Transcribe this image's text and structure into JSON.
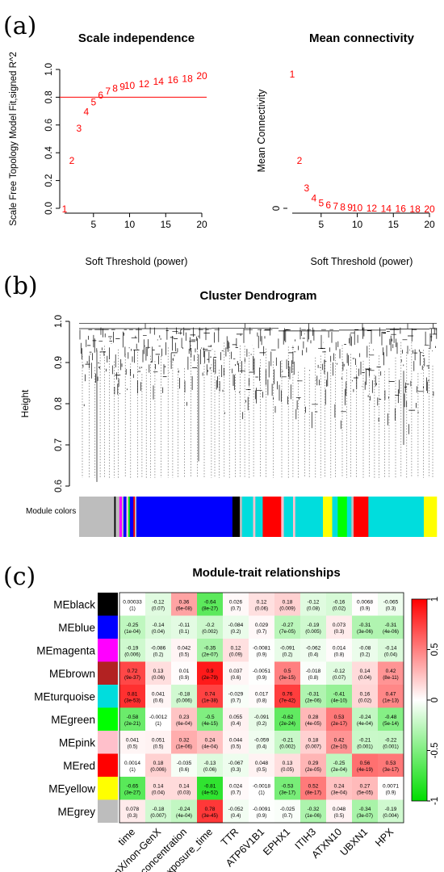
{
  "panels": {
    "a": "(a)",
    "b": "(b)",
    "c": "(c)"
  },
  "colors": {
    "threshold_line": "#ff0000",
    "point_text": "#ff0000",
    "dendrogram": "#000000",
    "heatmap_high": "#ff0000",
    "heatmap_mid": "#ffffff",
    "heatmap_low": "#00dd00"
  },
  "chart_data": [
    {
      "type": "scatter",
      "title": "Scale independence",
      "xlabel": "Soft Threshold (power)",
      "ylabel": "Scale Free Topology Model Fit,signed R^2",
      "xlim": [
        1,
        20
      ],
      "ylim": [
        0,
        1
      ],
      "xticks": [
        5,
        10,
        15,
        20
      ],
      "yticks": [
        0.0,
        0.2,
        0.4,
        0.6,
        0.8,
        1.0
      ],
      "cutoff": 0.8,
      "points": [
        {
          "x": 1,
          "y": 0.0,
          "label": "1"
        },
        {
          "x": 2,
          "y": 0.35,
          "label": "2"
        },
        {
          "x": 3,
          "y": 0.58,
          "label": "3"
        },
        {
          "x": 4,
          "y": 0.7,
          "label": "4"
        },
        {
          "x": 5,
          "y": 0.77,
          "label": "5"
        },
        {
          "x": 6,
          "y": 0.82,
          "label": "6"
        },
        {
          "x": 7,
          "y": 0.85,
          "label": "7"
        },
        {
          "x": 8,
          "y": 0.87,
          "label": "8"
        },
        {
          "x": 9,
          "y": 0.88,
          "label": "9"
        },
        {
          "x": 10,
          "y": 0.89,
          "label": "10"
        },
        {
          "x": 12,
          "y": 0.9,
          "label": "12"
        },
        {
          "x": 14,
          "y": 0.92,
          "label": "14"
        },
        {
          "x": 16,
          "y": 0.93,
          "label": "16"
        },
        {
          "x": 18,
          "y": 0.94,
          "label": "18"
        },
        {
          "x": 20,
          "y": 0.96,
          "label": "20"
        }
      ]
    },
    {
      "type": "scatter",
      "title": "Mean connectivity",
      "xlabel": "Soft Threshold (power)",
      "ylabel": "Mean Connectivity",
      "xlim": [
        1,
        20
      ],
      "ylim": [
        0,
        18
      ],
      "xticks": [
        5,
        10,
        15,
        20
      ],
      "yticks": [
        0
      ],
      "points": [
        {
          "x": 1,
          "y": 17.5,
          "label": "1"
        },
        {
          "x": 2,
          "y": 6.3,
          "label": "2"
        },
        {
          "x": 3,
          "y": 2.7,
          "label": "3"
        },
        {
          "x": 4,
          "y": 1.4,
          "label": "4"
        },
        {
          "x": 5,
          "y": 0.8,
          "label": "5"
        },
        {
          "x": 6,
          "y": 0.5,
          "label": "6"
        },
        {
          "x": 7,
          "y": 0.35,
          "label": "7"
        },
        {
          "x": 8,
          "y": 0.25,
          "label": "8"
        },
        {
          "x": 9,
          "y": 0.2,
          "label": "9"
        },
        {
          "x": 10,
          "y": 0.15,
          "label": "10"
        },
        {
          "x": 12,
          "y": 0.1,
          "label": "12"
        },
        {
          "x": 14,
          "y": 0.05,
          "label": "14"
        },
        {
          "x": 16,
          "y": 0.03,
          "label": "16"
        },
        {
          "x": 18,
          "y": 0.02,
          "label": "18"
        },
        {
          "x": 20,
          "y": 0.01,
          "label": "20"
        }
      ]
    },
    {
      "type": "dendrogram",
      "title": "Cluster Dendrogram",
      "ylabel": "Height",
      "ylim": [
        0.6,
        1.0
      ],
      "yticks": [
        0.6,
        0.7,
        0.8,
        0.9,
        1.0
      ],
      "color_bar_label": "Module colors",
      "color_bar": [
        {
          "color": "#bdbdbd",
          "w": 9.5
        },
        {
          "color": "#000000",
          "w": 0.4
        },
        {
          "color": "#bdbdbd",
          "w": 1.0
        },
        {
          "color": "#ff00ff",
          "w": 0.7
        },
        {
          "color": "#bdbdbd",
          "w": 0.4
        },
        {
          "color": "#0000ff",
          "w": 0.8
        },
        {
          "color": "#ffc0cb",
          "w": 0.5
        },
        {
          "color": "#00ff00",
          "w": 0.4
        },
        {
          "color": "#0000ff",
          "w": 1.0
        },
        {
          "color": "#ff0000",
          "w": 0.4
        },
        {
          "color": "#bdbdbd",
          "w": 0.4
        },
        {
          "color": "#0000ff",
          "w": 26.0
        },
        {
          "color": "#000000",
          "w": 2.0
        },
        {
          "color": "#bdbdbd",
          "w": 0.6
        },
        {
          "color": "#00dddd",
          "w": 3.0
        },
        {
          "color": "#ffc0cb",
          "w": 0.6
        },
        {
          "color": "#00dddd",
          "w": 2.0
        },
        {
          "color": "#ff0000",
          "w": 5.0
        },
        {
          "color": "#ffc0cb",
          "w": 0.7
        },
        {
          "color": "#00dddd",
          "w": 2.5
        },
        {
          "color": "#ffc0cb",
          "w": 0.6
        },
        {
          "color": "#00dddd",
          "w": 7.5
        },
        {
          "color": "#ffff00",
          "w": 2.5
        },
        {
          "color": "#00dddd",
          "w": 1.5
        },
        {
          "color": "#00ff00",
          "w": 2.5
        },
        {
          "color": "#00dddd",
          "w": 1.2
        },
        {
          "color": "#bdbdbd",
          "w": 0.6
        },
        {
          "color": "#ff0000",
          "w": 4.0
        },
        {
          "color": "#00dddd",
          "w": 15.0
        },
        {
          "color": "#ffff00",
          "w": 3.5
        }
      ]
    },
    {
      "type": "heatmap",
      "title": "Module-trait relationships",
      "rows": [
        "MEblack",
        "MEblue",
        "MEmagenta",
        "MEbrown",
        "MEturquoise",
        "MEgreen",
        "MEpink",
        "MEred",
        "MEyellow",
        "MEgrey"
      ],
      "row_colors": [
        "#000000",
        "#0000ff",
        "#ff00ff",
        "#b22222",
        "#00dddd",
        "#00ff00",
        "#ffc0cb",
        "#ff0000",
        "#ffff00",
        "#bdbdbd"
      ],
      "columns": [
        "time",
        "GenX/non-GenX",
        "GenX_concentration",
        "GenX_exposure_time",
        "TTR",
        "ATP6V1B1",
        "EPHX1",
        "ITIH3",
        "ATXN10",
        "UBXN1",
        "HPX"
      ],
      "values": [
        [
          0.00033,
          -0.12,
          0.36,
          -0.64,
          0.026,
          0.12,
          0.18,
          -0.12,
          -0.16,
          0.0068,
          -0.065
        ],
        [
          -0.25,
          -0.14,
          -0.11,
          -0.2,
          -0.084,
          0.029,
          -0.27,
          -0.19,
          0.073,
          -0.31,
          -0.31
        ],
        [
          -0.19,
          -0.086,
          0.042,
          -0.35,
          0.12,
          -0.0081,
          -0.091,
          -0.062,
          0.014,
          -0.08,
          -0.14
        ],
        [
          0.72,
          0.13,
          0.01,
          0.9,
          0.037,
          -0.0051,
          0.5,
          -0.018,
          -0.12,
          0.14,
          0.42
        ],
        [
          0.81,
          0.041,
          -0.18,
          0.74,
          -0.029,
          0.017,
          0.76,
          -0.31,
          -0.41,
          0.16,
          0.47
        ],
        [
          -0.58,
          -0.0012,
          0.23,
          -0.5,
          0.055,
          -0.091,
          -0.62,
          0.28,
          0.53,
          -0.24,
          -0.48
        ],
        [
          0.041,
          0.051,
          0.32,
          0.24,
          0.044,
          -0.059,
          -0.21,
          0.18,
          0.42,
          -0.21,
          -0.22
        ],
        [
          0.0014,
          0.18,
          -0.035,
          -0.13,
          -0.067,
          0.048,
          0.13,
          0.29,
          -0.25,
          0.56,
          0.53
        ],
        [
          -0.65,
          0.14,
          0.14,
          -0.81,
          0.024,
          -0.0018,
          -0.53,
          0.52,
          0.24,
          0.27,
          0.0071
        ],
        [
          0.078,
          -0.18,
          -0.24,
          0.78,
          -0.052,
          -0.0091,
          -0.025,
          -0.32,
          0.048,
          -0.34,
          -0.19
        ]
      ],
      "labels": [
        [
          "0.00033",
          "-0.12",
          "0.36",
          "-0.64",
          "0.026",
          "0.12",
          "0.18",
          "-0.12",
          "-0.16",
          "0.0068",
          "-0.065"
        ],
        [
          "-0.25",
          "-0.14",
          "-0.11",
          "-0.2",
          "-0.084",
          "0.029",
          "-0.27",
          "-0.19",
          "0.073",
          "-0.31",
          "-0.31"
        ],
        [
          "-0.19",
          "-0.086",
          "0.042",
          "-0.35",
          "0.12",
          "-0.0081",
          "-0.091",
          "-0.062",
          "0.014",
          "-0.08",
          "-0.14"
        ],
        [
          "0.72",
          "0.13",
          "0.01",
          "0.9",
          "0.037",
          "-0.0051",
          "0.5",
          "-0.018",
          "-0.12",
          "0.14",
          "0.42"
        ],
        [
          "0.81",
          "0.041",
          "-0.18",
          "0.74",
          "-0.029",
          "0.017",
          "0.76",
          "-0.31",
          "-0.41",
          "0.16",
          "0.47"
        ],
        [
          "-0.58",
          "-0.0012",
          "0.23",
          "-0.5",
          "0.055",
          "-0.091",
          "-0.62",
          "0.28",
          "0.53",
          "-0.24",
          "-0.48"
        ],
        [
          "0.041",
          "0.051",
          "0.32",
          "0.24",
          "0.044",
          "-0.059",
          "-0.21",
          "0.18",
          "0.42",
          "-0.21",
          "-0.22"
        ],
        [
          "0.0014",
          "0.18",
          "-0.035",
          "-0.13",
          "-0.067",
          "0.048",
          "0.13",
          "0.29",
          "-0.25",
          "0.56",
          "0.53"
        ],
        [
          "-0.65",
          "0.14",
          "0.14",
          "-0.81",
          "0.024",
          "-0.0018",
          "-0.53",
          "0.52",
          "0.24",
          "0.27",
          "0.0071"
        ],
        [
          "0.078",
          "-0.18",
          "-0.24",
          "0.78",
          "-0.052",
          "-0.0091",
          "-0.025",
          "-0.32",
          "0.048",
          "-0.34",
          "-0.19"
        ]
      ],
      "pvalues": [
        [
          "(1)",
          "(0.07)",
          "(6e-08)",
          "(8e-27)",
          "(0.7)",
          "(0.06)",
          "(0.009)",
          "(0.08)",
          "(0.02)",
          "(0.9)",
          "(0.3)"
        ],
        [
          "(1e-04)",
          "(0.04)",
          "(0.1)",
          "(0.002)",
          "(0.2)",
          "(0.7)",
          "(7e-05)",
          "(0.005)",
          "(0.3)",
          "(3e-06)",
          "(4e-06)"
        ],
        [
          "(0.006)",
          "(0.2)",
          "(0.5)",
          "(2e-07)",
          "(0.09)",
          "(0.9)",
          "(0.2)",
          "(0.4)",
          "(0.8)",
          "(0.2)",
          "(0.04)"
        ],
        [
          "(9e-37)",
          "(0.06)",
          "(0.9)",
          "(2e-79)",
          "(0.6)",
          "(0.9)",
          "(3e-15)",
          "(0.8)",
          "(0.07)",
          "(0.04)",
          "(8e-11)"
        ],
        [
          "(3e-53)",
          "(0.6)",
          "(0.006)",
          "(1e-38)",
          "(0.7)",
          "(0.8)",
          "(7e-42)",
          "(2e-06)",
          "(4e-10)",
          "(0.02)",
          "(1e-13)"
        ],
        [
          "(2e-21)",
          "(1)",
          "(6e-04)",
          "(4e-15)",
          "(0.4)",
          "(0.2)",
          "(2e-24)",
          "(4e-05)",
          "(2e-17)",
          "(4e-04)",
          "(5e-14)"
        ],
        [
          "(0.5)",
          "(0.5)",
          "(1e-06)",
          "(4e-04)",
          "(0.5)",
          "(0.4)",
          "(0.002)",
          "(0.007)",
          "(2e-10)",
          "(0.001)",
          "(0.001)"
        ],
        [
          "(1)",
          "(0.006)",
          "(0.6)",
          "(0.06)",
          "(0.3)",
          "(0.5)",
          "(0.05)",
          "(2e-05)",
          "(2e-04)",
          "(4e-19)",
          "(3e-17)"
        ],
        [
          "(3e-27)",
          "(0.04)",
          "(0.03)",
          "(4e-52)",
          "(0.7)",
          "(1)",
          "(3e-17)",
          "(8e-17)",
          "(3e-04)",
          "(5e-05)",
          "(0.9)"
        ],
        [
          "(0.3)",
          "(0.007)",
          "(4e-04)",
          "(3e-45)",
          "(0.4)",
          "(0.9)",
          "(0.7)",
          "(1e-06)",
          "(0.5)",
          "(3e-07)",
          "(0.004)"
        ]
      ],
      "legend_range": [
        -1,
        1
      ],
      "legend_ticks": [
        {
          "v": 1,
          "label": "1"
        },
        {
          "v": 0.5,
          "label": "0.5"
        },
        {
          "v": 0,
          "label": "0"
        },
        {
          "v": -0.5,
          "label": "-0.5"
        },
        {
          "v": -1,
          "label": "-1"
        }
      ]
    }
  ]
}
